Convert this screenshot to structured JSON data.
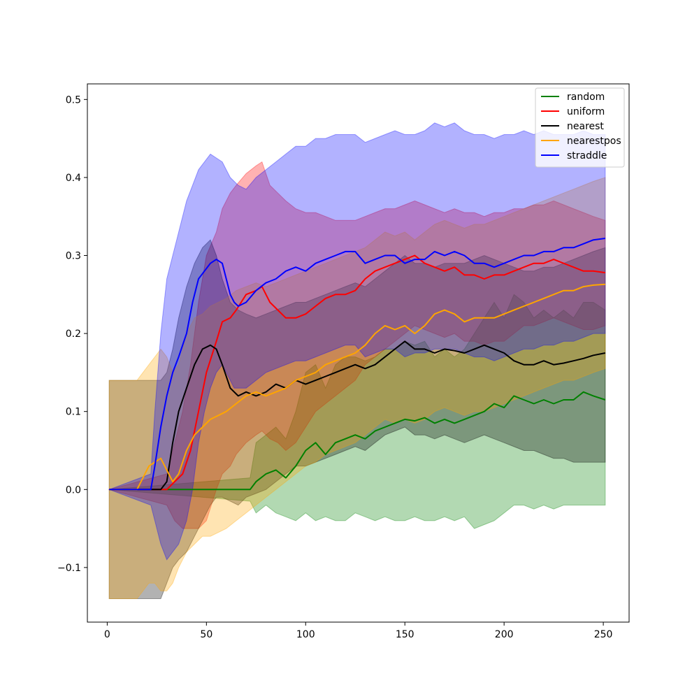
{
  "chart_data": {
    "type": "line",
    "title": "",
    "xlabel": "",
    "ylabel": "",
    "xlim": [
      -10,
      263
    ],
    "ylim": [
      -0.17,
      0.52
    ],
    "xticks": [
      0,
      50,
      100,
      150,
      200,
      250
    ],
    "xtick_labels": [
      "0",
      "50",
      "100",
      "150",
      "200",
      "250"
    ],
    "yticks": [
      -0.1,
      0.0,
      0.1,
      0.2,
      0.3,
      0.4,
      0.5
    ],
    "ytick_labels": [
      "−0.1",
      "0.0",
      "0.1",
      "0.2",
      "0.3",
      "0.4",
      "0.5"
    ],
    "grid": false,
    "legend_position": "top-right",
    "series": [
      {
        "name": "random",
        "color": "#008000",
        "band_opacity": 0.3,
        "x": [
          1,
          72,
          75,
          80,
          85,
          90,
          95,
          100,
          105,
          110,
          115,
          120,
          125,
          130,
          135,
          140,
          145,
          150,
          155,
          160,
          165,
          170,
          175,
          180,
          185,
          190,
          195,
          200,
          205,
          210,
          215,
          220,
          225,
          230,
          235,
          240,
          245,
          251
        ],
        "mean": [
          0.0,
          0.0,
          0.01,
          0.02,
          0.025,
          0.015,
          0.03,
          0.05,
          0.06,
          0.045,
          0.06,
          0.065,
          0.07,
          0.065,
          0.075,
          0.08,
          0.085,
          0.09,
          0.088,
          0.092,
          0.085,
          0.09,
          0.085,
          0.09,
          0.095,
          0.1,
          0.11,
          0.105,
          0.12,
          0.115,
          0.11,
          0.115,
          0.11,
          0.115,
          0.115,
          0.125,
          0.12,
          0.115
        ],
        "lower": [
          0.0,
          -0.015,
          -0.03,
          -0.02,
          -0.03,
          -0.035,
          -0.04,
          -0.03,
          -0.04,
          -0.035,
          -0.04,
          -0.04,
          -0.03,
          -0.035,
          -0.04,
          -0.035,
          -0.04,
          -0.04,
          -0.035,
          -0.04,
          -0.04,
          -0.035,
          -0.04,
          -0.035,
          -0.05,
          -0.045,
          -0.04,
          -0.03,
          -0.02,
          -0.02,
          -0.025,
          -0.02,
          -0.025,
          -0.02,
          -0.02,
          -0.02,
          -0.02,
          -0.02
        ],
        "upper": [
          0.0,
          0.015,
          0.06,
          0.07,
          0.08,
          0.065,
          0.1,
          0.15,
          0.16,
          0.13,
          0.16,
          0.17,
          0.17,
          0.165,
          0.17,
          0.18,
          0.18,
          0.19,
          0.185,
          0.19,
          0.17,
          0.18,
          0.17,
          0.18,
          0.2,
          0.22,
          0.24,
          0.22,
          0.25,
          0.24,
          0.22,
          0.23,
          0.22,
          0.23,
          0.22,
          0.24,
          0.24,
          0.23
        ]
      },
      {
        "name": "uniform",
        "color": "#ff0000",
        "band_opacity": 0.3,
        "x": [
          1,
          30,
          34,
          38,
          42,
          46,
          50,
          55,
          58,
          62,
          65,
          70,
          75,
          78,
          82,
          86,
          90,
          95,
          100,
          105,
          110,
          115,
          120,
          125,
          130,
          135,
          140,
          145,
          150,
          155,
          160,
          165,
          170,
          175,
          180,
          185,
          190,
          195,
          200,
          205,
          210,
          215,
          220,
          225,
          230,
          235,
          240,
          245,
          251
        ],
        "mean": [
          0.0,
          0.0,
          0.01,
          0.02,
          0.05,
          0.1,
          0.15,
          0.19,
          0.215,
          0.22,
          0.23,
          0.25,
          0.255,
          0.26,
          0.24,
          0.23,
          0.22,
          0.22,
          0.225,
          0.235,
          0.245,
          0.25,
          0.25,
          0.255,
          0.27,
          0.28,
          0.285,
          0.29,
          0.295,
          0.3,
          0.29,
          0.285,
          0.28,
          0.285,
          0.275,
          0.275,
          0.27,
          0.275,
          0.275,
          0.28,
          0.285,
          0.29,
          0.29,
          0.295,
          0.29,
          0.285,
          0.28,
          0.28,
          0.278
        ],
        "lower": [
          0.0,
          -0.02,
          -0.04,
          -0.05,
          -0.05,
          -0.05,
          -0.04,
          0.0,
          0.02,
          0.03,
          0.045,
          0.06,
          0.07,
          0.075,
          0.065,
          0.06,
          0.05,
          0.06,
          0.08,
          0.1,
          0.11,
          0.12,
          0.13,
          0.14,
          0.16,
          0.17,
          0.18,
          0.19,
          0.2,
          0.21,
          0.205,
          0.2,
          0.195,
          0.2,
          0.19,
          0.19,
          0.185,
          0.19,
          0.19,
          0.2,
          0.21,
          0.21,
          0.215,
          0.22,
          0.215,
          0.21,
          0.205,
          0.205,
          0.21
        ],
        "upper": [
          0.0,
          0.02,
          0.06,
          0.1,
          0.16,
          0.24,
          0.3,
          0.33,
          0.36,
          0.38,
          0.39,
          0.405,
          0.415,
          0.42,
          0.39,
          0.38,
          0.37,
          0.36,
          0.355,
          0.355,
          0.35,
          0.345,
          0.345,
          0.345,
          0.35,
          0.355,
          0.36,
          0.36,
          0.365,
          0.37,
          0.365,
          0.36,
          0.355,
          0.36,
          0.355,
          0.355,
          0.35,
          0.355,
          0.355,
          0.36,
          0.36,
          0.365,
          0.365,
          0.37,
          0.365,
          0.36,
          0.355,
          0.35,
          0.345
        ]
      },
      {
        "name": "nearest",
        "color": "#000000",
        "band_opacity": 0.3,
        "x": [
          1,
          27,
          30,
          33,
          36,
          40,
          44,
          48,
          52,
          55,
          58,
          62,
          66,
          70,
          75,
          80,
          85,
          90,
          95,
          100,
          105,
          110,
          115,
          120,
          125,
          130,
          135,
          140,
          145,
          150,
          155,
          160,
          165,
          170,
          175,
          180,
          185,
          190,
          195,
          200,
          205,
          210,
          215,
          220,
          225,
          230,
          235,
          240,
          245,
          251
        ],
        "mean": [
          0.0,
          0.0,
          0.01,
          0.06,
          0.1,
          0.13,
          0.16,
          0.18,
          0.185,
          0.18,
          0.16,
          0.13,
          0.12,
          0.125,
          0.12,
          0.125,
          0.135,
          0.13,
          0.14,
          0.135,
          0.14,
          0.145,
          0.15,
          0.155,
          0.16,
          0.155,
          0.16,
          0.17,
          0.18,
          0.19,
          0.18,
          0.18,
          0.175,
          0.18,
          0.178,
          0.175,
          0.18,
          0.185,
          0.18,
          0.175,
          0.165,
          0.16,
          0.16,
          0.165,
          0.16,
          0.162,
          0.165,
          0.168,
          0.172,
          0.175
        ],
        "lower": [
          -0.14,
          -0.14,
          -0.12,
          -0.1,
          -0.09,
          -0.08,
          -0.06,
          -0.04,
          -0.02,
          -0.01,
          -0.01,
          -0.015,
          -0.02,
          -0.01,
          -0.005,
          0.0,
          0.01,
          0.02,
          0.03,
          0.03,
          0.035,
          0.04,
          0.045,
          0.05,
          0.055,
          0.05,
          0.06,
          0.07,
          0.075,
          0.08,
          0.07,
          0.07,
          0.065,
          0.07,
          0.065,
          0.06,
          0.065,
          0.07,
          0.065,
          0.06,
          0.055,
          0.05,
          0.05,
          0.045,
          0.04,
          0.04,
          0.035,
          0.035,
          0.035,
          0.035
        ],
        "upper": [
          0.14,
          0.14,
          0.15,
          0.18,
          0.22,
          0.26,
          0.29,
          0.31,
          0.32,
          0.3,
          0.27,
          0.24,
          0.23,
          0.225,
          0.22,
          0.225,
          0.23,
          0.235,
          0.24,
          0.24,
          0.245,
          0.25,
          0.255,
          0.26,
          0.265,
          0.26,
          0.27,
          0.28,
          0.29,
          0.3,
          0.29,
          0.29,
          0.285,
          0.29,
          0.29,
          0.29,
          0.295,
          0.3,
          0.295,
          0.29,
          0.285,
          0.28,
          0.28,
          0.285,
          0.285,
          0.29,
          0.295,
          0.3,
          0.305,
          0.31
        ]
      },
      {
        "name": "nearestpos",
        "color": "#ffa500",
        "band_opacity": 0.3,
        "x": [
          1,
          15,
          18,
          21,
          24,
          27,
          30,
          33,
          36,
          40,
          44,
          48,
          52,
          56,
          60,
          65,
          70,
          75,
          80,
          85,
          90,
          95,
          100,
          105,
          110,
          115,
          120,
          125,
          130,
          135,
          140,
          145,
          150,
          155,
          160,
          165,
          170,
          175,
          180,
          185,
          190,
          195,
          200,
          205,
          210,
          215,
          220,
          225,
          230,
          235,
          240,
          245,
          251
        ],
        "mean": [
          0.0,
          0.0,
          0.015,
          0.03,
          0.035,
          0.04,
          0.025,
          0.01,
          0.02,
          0.05,
          0.07,
          0.08,
          0.09,
          0.095,
          0.1,
          0.11,
          0.12,
          0.125,
          0.12,
          0.125,
          0.13,
          0.14,
          0.145,
          0.15,
          0.16,
          0.165,
          0.17,
          0.175,
          0.185,
          0.2,
          0.21,
          0.205,
          0.21,
          0.2,
          0.21,
          0.225,
          0.23,
          0.225,
          0.215,
          0.22,
          0.22,
          0.22,
          0.225,
          0.23,
          0.235,
          0.24,
          0.245,
          0.25,
          0.255,
          0.255,
          0.26,
          0.262,
          0.263
        ],
        "lower": [
          -0.14,
          -0.14,
          -0.13,
          -0.12,
          -0.12,
          -0.13,
          -0.13,
          -0.12,
          -0.1,
          -0.08,
          -0.07,
          -0.06,
          -0.06,
          -0.055,
          -0.05,
          -0.04,
          -0.03,
          -0.02,
          -0.01,
          0.0,
          0.01,
          0.02,
          0.03,
          0.035,
          0.045,
          0.05,
          0.055,
          0.06,
          0.07,
          0.08,
          0.09,
          0.085,
          0.09,
          0.085,
          0.09,
          0.1,
          0.105,
          0.1,
          0.095,
          0.1,
          0.1,
          0.105,
          0.11,
          0.115,
          0.12,
          0.125,
          0.13,
          0.135,
          0.14,
          0.14,
          0.145,
          0.15,
          0.155
        ],
        "upper": [
          0.14,
          0.14,
          0.15,
          0.16,
          0.17,
          0.18,
          0.17,
          0.15,
          0.16,
          0.2,
          0.22,
          0.225,
          0.235,
          0.24,
          0.245,
          0.255,
          0.26,
          0.265,
          0.26,
          0.265,
          0.27,
          0.275,
          0.28,
          0.285,
          0.29,
          0.295,
          0.3,
          0.305,
          0.31,
          0.32,
          0.33,
          0.325,
          0.33,
          0.32,
          0.33,
          0.34,
          0.345,
          0.34,
          0.335,
          0.34,
          0.34,
          0.345,
          0.35,
          0.355,
          0.36,
          0.365,
          0.37,
          0.375,
          0.38,
          0.385,
          0.39,
          0.395,
          0.4
        ]
      },
      {
        "name": "straddle",
        "color": "#0000ff",
        "band_opacity": 0.3,
        "x": [
          1,
          22,
          24,
          27,
          30,
          33,
          36,
          40,
          43,
          46,
          49,
          52,
          55,
          58,
          60,
          62,
          64,
          66,
          70,
          75,
          80,
          85,
          90,
          95,
          100,
          105,
          110,
          115,
          120,
          125,
          130,
          135,
          140,
          145,
          150,
          155,
          160,
          165,
          170,
          175,
          180,
          185,
          190,
          195,
          200,
          205,
          210,
          215,
          220,
          225,
          230,
          235,
          240,
          245,
          251
        ],
        "mean": [
          0.0,
          0.0,
          0.03,
          0.08,
          0.12,
          0.15,
          0.17,
          0.2,
          0.24,
          0.27,
          0.28,
          0.29,
          0.295,
          0.29,
          0.27,
          0.25,
          0.24,
          0.235,
          0.24,
          0.255,
          0.265,
          0.27,
          0.28,
          0.285,
          0.28,
          0.29,
          0.295,
          0.3,
          0.305,
          0.305,
          0.29,
          0.295,
          0.3,
          0.3,
          0.29,
          0.295,
          0.295,
          0.305,
          0.3,
          0.305,
          0.3,
          0.29,
          0.29,
          0.285,
          0.29,
          0.295,
          0.3,
          0.3,
          0.305,
          0.305,
          0.31,
          0.31,
          0.315,
          0.32,
          0.322
        ],
        "lower": [
          0.0,
          -0.02,
          -0.04,
          -0.07,
          -0.09,
          -0.08,
          -0.07,
          -0.04,
          0.0,
          0.06,
          0.1,
          0.13,
          0.15,
          0.16,
          0.15,
          0.14,
          0.13,
          0.13,
          0.13,
          0.14,
          0.15,
          0.155,
          0.16,
          0.165,
          0.165,
          0.17,
          0.175,
          0.18,
          0.185,
          0.185,
          0.17,
          0.175,
          0.18,
          0.18,
          0.17,
          0.175,
          0.175,
          0.18,
          0.18,
          0.18,
          0.175,
          0.17,
          0.17,
          0.165,
          0.17,
          0.175,
          0.18,
          0.18,
          0.185,
          0.185,
          0.19,
          0.19,
          0.195,
          0.2,
          0.2
        ],
        "upper": [
          0.0,
          0.02,
          0.1,
          0.2,
          0.27,
          0.3,
          0.33,
          0.37,
          0.39,
          0.41,
          0.42,
          0.43,
          0.425,
          0.42,
          0.41,
          0.4,
          0.395,
          0.39,
          0.385,
          0.4,
          0.41,
          0.42,
          0.43,
          0.44,
          0.44,
          0.45,
          0.45,
          0.455,
          0.455,
          0.455,
          0.445,
          0.45,
          0.455,
          0.46,
          0.455,
          0.455,
          0.46,
          0.47,
          0.465,
          0.47,
          0.46,
          0.455,
          0.455,
          0.45,
          0.455,
          0.455,
          0.46,
          0.455,
          0.46,
          0.455,
          0.455,
          0.455,
          0.46,
          0.455,
          0.455
        ]
      }
    ]
  }
}
